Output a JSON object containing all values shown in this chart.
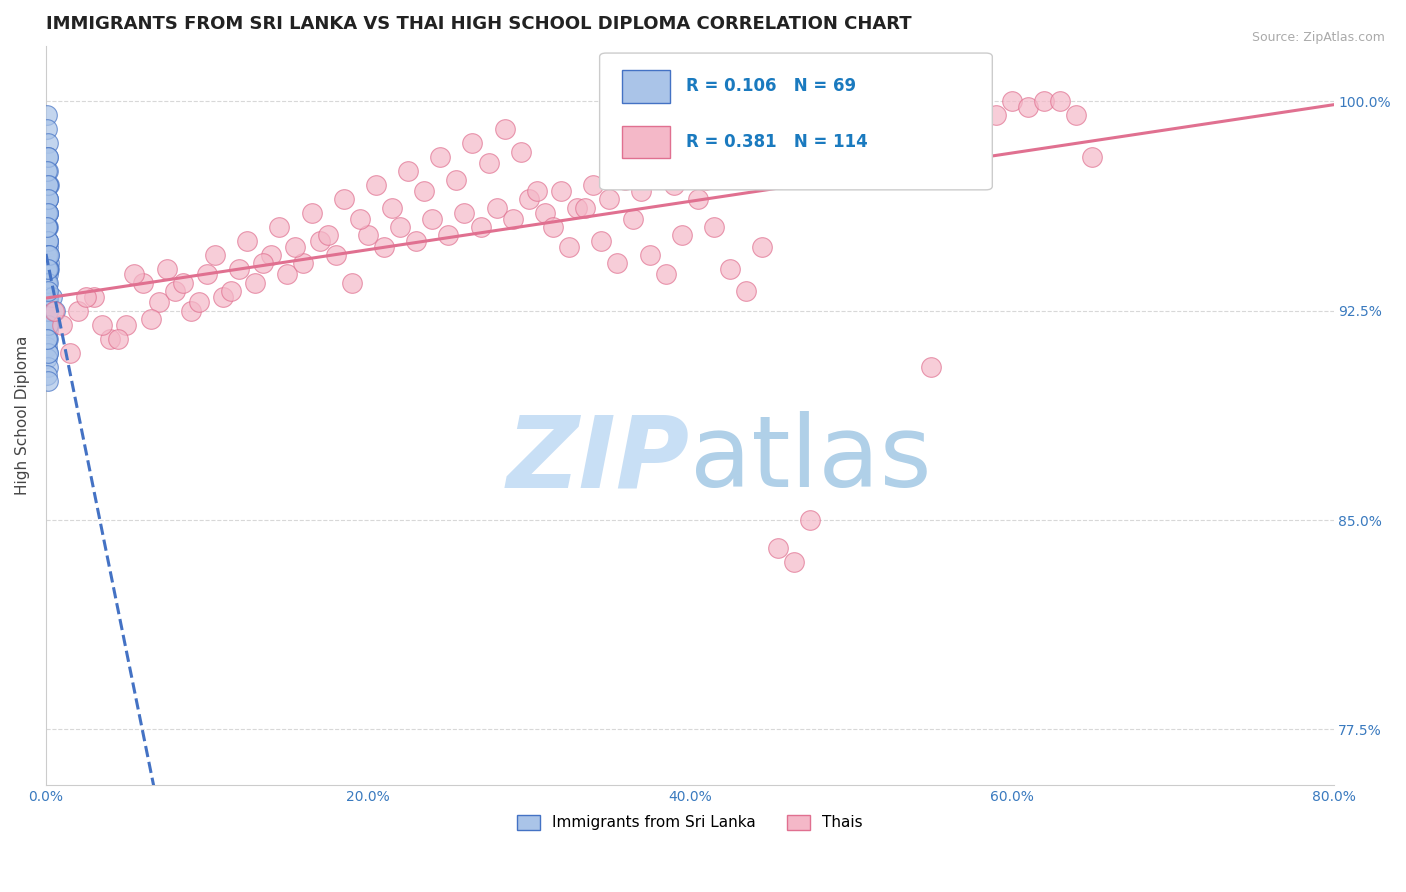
{
  "title": "IMMIGRANTS FROM SRI LANKA VS THAI HIGH SCHOOL DIPLOMA CORRELATION CHART",
  "source_text": "Source: ZipAtlas.com",
  "ylabel": "High School Diploma",
  "xlim": [
    0.0,
    80.0
  ],
  "ylim": [
    75.5,
    102.0
  ],
  "ytick_vals": [
    77.5,
    85.0,
    92.5,
    100.0
  ],
  "ytick_labels": [
    "77.5%",
    "85.0%",
    "92.5%",
    "100.0%"
  ],
  "xtick_vals": [
    0.0,
    20.0,
    40.0,
    60.0,
    80.0
  ],
  "xtick_labels": [
    "0.0%",
    "20.0%",
    "40.0%",
    "60.0%",
    "80.0%"
  ],
  "series": [
    {
      "name": "Immigrants from Sri Lanka",
      "R": 0.106,
      "N": 69,
      "color": "#aac4e8",
      "edge_color": "#4472c4",
      "trend_color": "#4472c4",
      "trend_style": "--",
      "x": [
        0.05,
        0.08,
        0.1,
        0.12,
        0.15,
        0.18,
        0.1,
        0.12,
        0.08,
        0.05,
        0.1,
        0.15,
        0.18,
        0.2,
        0.12,
        0.08,
        0.05,
        0.1,
        0.12,
        0.15,
        0.08,
        0.1,
        0.12,
        0.15,
        0.08,
        0.1,
        0.05,
        0.12,
        0.08,
        0.1,
        0.12,
        0.15,
        0.18,
        0.1,
        0.08,
        0.05,
        0.12,
        0.1,
        0.08,
        0.15,
        0.1,
        0.08,
        0.12,
        0.05,
        0.1,
        0.08,
        0.12,
        0.15,
        0.1,
        0.08,
        0.12,
        0.1,
        0.08,
        0.05,
        0.1,
        0.12,
        0.08,
        0.15,
        0.4,
        0.55,
        0.1,
        0.08,
        0.12,
        0.15,
        0.1,
        0.08,
        0.2,
        0.12,
        0.1
      ],
      "y": [
        99.5,
        99.0,
        98.5,
        98.0,
        97.5,
        97.0,
        96.5,
        96.0,
        95.5,
        95.0,
        94.8,
        94.5,
        94.2,
        94.0,
        93.8,
        93.5,
        93.2,
        93.0,
        92.8,
        92.5,
        92.2,
        92.0,
        91.8,
        91.5,
        91.2,
        91.0,
        90.8,
        90.5,
        90.2,
        90.0,
        95.5,
        95.0,
        94.5,
        94.0,
        93.5,
        93.0,
        92.5,
        92.0,
        91.5,
        91.0,
        96.0,
        95.5,
        95.0,
        94.5,
        94.0,
        93.5,
        93.0,
        92.5,
        92.0,
        91.5,
        97.0,
        96.5,
        96.0,
        95.5,
        95.0,
        94.5,
        94.0,
        93.5,
        93.0,
        92.5,
        98.0,
        97.5,
        97.0,
        96.5,
        96.0,
        95.5,
        94.5,
        94.0,
        93.2
      ]
    },
    {
      "name": "Thais",
      "R": 0.381,
      "N": 114,
      "color": "#f4b8c8",
      "edge_color": "#e07090",
      "trend_color": "#e07090",
      "trend_style": "-",
      "x": [
        1.0,
        2.0,
        3.0,
        4.0,
        5.0,
        6.0,
        7.0,
        8.0,
        9.0,
        10.0,
        11.0,
        12.0,
        13.0,
        14.0,
        15.0,
        16.0,
        17.0,
        18.0,
        19.0,
        20.0,
        21.0,
        22.0,
        23.0,
        24.0,
        25.0,
        26.0,
        27.0,
        28.0,
        29.0,
        30.0,
        31.0,
        32.0,
        33.0,
        34.0,
        35.0,
        36.0,
        37.0,
        38.0,
        39.0,
        40.0,
        41.0,
        42.0,
        43.0,
        44.0,
        45.0,
        46.0,
        47.0,
        48.0,
        49.0,
        50.0,
        51.0,
        52.0,
        53.0,
        54.0,
        55.0,
        56.0,
        57.0,
        58.0,
        59.0,
        60.0,
        61.0,
        62.0,
        63.0,
        64.0,
        65.0,
        0.5,
        1.5,
        2.5,
        3.5,
        4.5,
        5.5,
        6.5,
        7.5,
        8.5,
        9.5,
        10.5,
        11.5,
        12.5,
        13.5,
        14.5,
        15.5,
        16.5,
        17.5,
        18.5,
        19.5,
        20.5,
        21.5,
        22.5,
        23.5,
        24.5,
        25.5,
        26.5,
        27.5,
        28.5,
        29.5,
        30.5,
        31.5,
        32.5,
        33.5,
        34.5,
        35.5,
        36.5,
        37.5,
        38.5,
        39.5,
        40.5,
        41.5,
        42.5,
        43.5,
        44.5,
        45.5,
        46.5,
        47.5,
        55.0
      ],
      "y": [
        92.0,
        92.5,
        93.0,
        91.5,
        92.0,
        93.5,
        92.8,
        93.2,
        92.5,
        93.8,
        93.0,
        94.0,
        93.5,
        94.5,
        93.8,
        94.2,
        95.0,
        94.5,
        93.5,
        95.2,
        94.8,
        95.5,
        95.0,
        95.8,
        95.2,
        96.0,
        95.5,
        96.2,
        95.8,
        96.5,
        96.0,
        96.8,
        96.2,
        97.0,
        96.5,
        97.2,
        96.8,
        97.5,
        97.0,
        97.8,
        97.2,
        98.0,
        97.5,
        98.2,
        97.8,
        98.5,
        98.0,
        98.8,
        98.2,
        99.0,
        98.5,
        99.2,
        98.8,
        99.5,
        99.0,
        99.8,
        99.2,
        100.0,
        99.5,
        100.0,
        99.8,
        100.0,
        100.0,
        99.5,
        98.0,
        92.5,
        91.0,
        93.0,
        92.0,
        91.5,
        93.8,
        92.2,
        94.0,
        93.5,
        92.8,
        94.5,
        93.2,
        95.0,
        94.2,
        95.5,
        94.8,
        96.0,
        95.2,
        96.5,
        95.8,
        97.0,
        96.2,
        97.5,
        96.8,
        98.0,
        97.2,
        98.5,
        97.8,
        99.0,
        98.2,
        96.8,
        95.5,
        94.8,
        96.2,
        95.0,
        94.2,
        95.8,
        94.5,
        93.8,
        95.2,
        96.5,
        95.5,
        94.0,
        93.2,
        94.8,
        84.0,
        83.5,
        85.0,
        90.5
      ]
    }
  ],
  "stat_color": "#1a7abf",
  "watermark_text": "ZIPatlas",
  "watermark_color_zip": "#c8dff5",
  "watermark_color_atlas": "#b0d0e8",
  "background_color": "#ffffff",
  "grid_color": "#d8d8d8",
  "title_fontsize": 13,
  "axis_label_fontsize": 11,
  "tick_label_fontsize": 10,
  "tick_label_color": "#3a7abf",
  "right_axis_color": "#3a7abf"
}
